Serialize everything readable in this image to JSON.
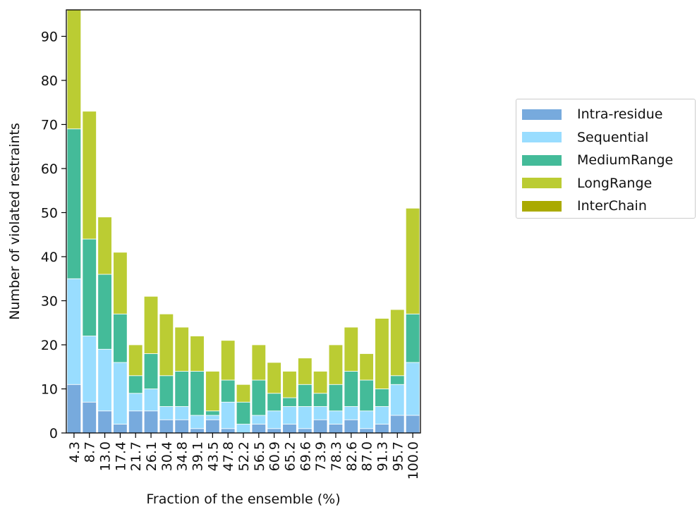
{
  "chart_data": {
    "type": "bar",
    "stacked": true,
    "title": "",
    "xlabel": "Fraction of the ensemble (%)",
    "ylabel": "Number of violated restraints",
    "ylim": [
      0,
      96
    ],
    "yticks": [
      0,
      10,
      20,
      30,
      40,
      50,
      60,
      70,
      80,
      90
    ],
    "categories": [
      "4.3",
      "8.7",
      "13.0",
      "17.4",
      "21.7",
      "26.1",
      "30.4",
      "34.8",
      "39.1",
      "43.5",
      "47.8",
      "52.2",
      "56.5",
      "60.9",
      "65.2",
      "69.6",
      "73.9",
      "78.3",
      "82.6",
      "87.0",
      "91.3",
      "95.7",
      "100.0"
    ],
    "legend_position": "right",
    "series": [
      {
        "name": "Intra-residue",
        "color": "#77aadd",
        "values": [
          11,
          7,
          5,
          2,
          5,
          5,
          3,
          3,
          1,
          3,
          1,
          0,
          2,
          1,
          2,
          1,
          3,
          2,
          3,
          1,
          2,
          4,
          4
        ]
      },
      {
        "name": "Sequential",
        "color": "#99ddff",
        "values": [
          24,
          15,
          14,
          14,
          4,
          5,
          3,
          3,
          3,
          1,
          6,
          2,
          2,
          4,
          4,
          5,
          3,
          3,
          3,
          4,
          4,
          7,
          12
        ]
      },
      {
        "name": "MediumRange",
        "color": "#44bb99",
        "values": [
          34,
          22,
          17,
          11,
          4,
          8,
          7,
          8,
          10,
          1,
          5,
          5,
          8,
          4,
          2,
          5,
          3,
          6,
          8,
          7,
          4,
          2,
          11
        ]
      },
      {
        "name": "LongRange",
        "color": "#bbcc33",
        "values": [
          27,
          29,
          13,
          14,
          7,
          13,
          14,
          10,
          8,
          9,
          9,
          4,
          8,
          7,
          6,
          6,
          5,
          9,
          10,
          6,
          16,
          15,
          24
        ]
      },
      {
        "name": "InterChain",
        "color": "#aaaa00",
        "values": [
          0,
          0,
          0,
          0,
          0,
          0,
          0,
          0,
          0,
          0,
          0,
          0,
          0,
          0,
          0,
          0,
          0,
          0,
          0,
          0,
          0,
          0,
          0
        ]
      }
    ]
  }
}
